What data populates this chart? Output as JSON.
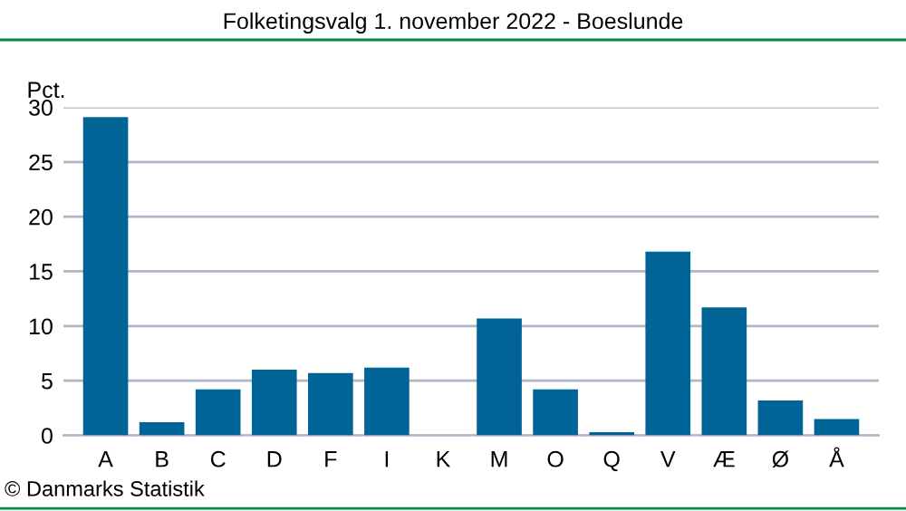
{
  "chart_data": {
    "type": "bar",
    "title": "Folketingsvalg 1. november 2022 - Boeslunde",
    "ylabel": "Pct.",
    "categories": [
      "A",
      "B",
      "C",
      "D",
      "F",
      "I",
      "K",
      "M",
      "O",
      "Q",
      "V",
      "Æ",
      "Ø",
      "Å"
    ],
    "values": [
      29.1,
      1.2,
      4.2,
      6.0,
      5.7,
      6.2,
      0,
      10.7,
      4.2,
      0.3,
      16.8,
      11.7,
      3.2,
      1.5
    ],
    "color": "#006496",
    "ylim": [
      0,
      30
    ],
    "yticks": [
      0,
      5,
      10,
      15,
      20,
      25,
      30
    ],
    "grid": "y",
    "annotations": [
      "© Danmarks Statistik"
    ]
  }
}
